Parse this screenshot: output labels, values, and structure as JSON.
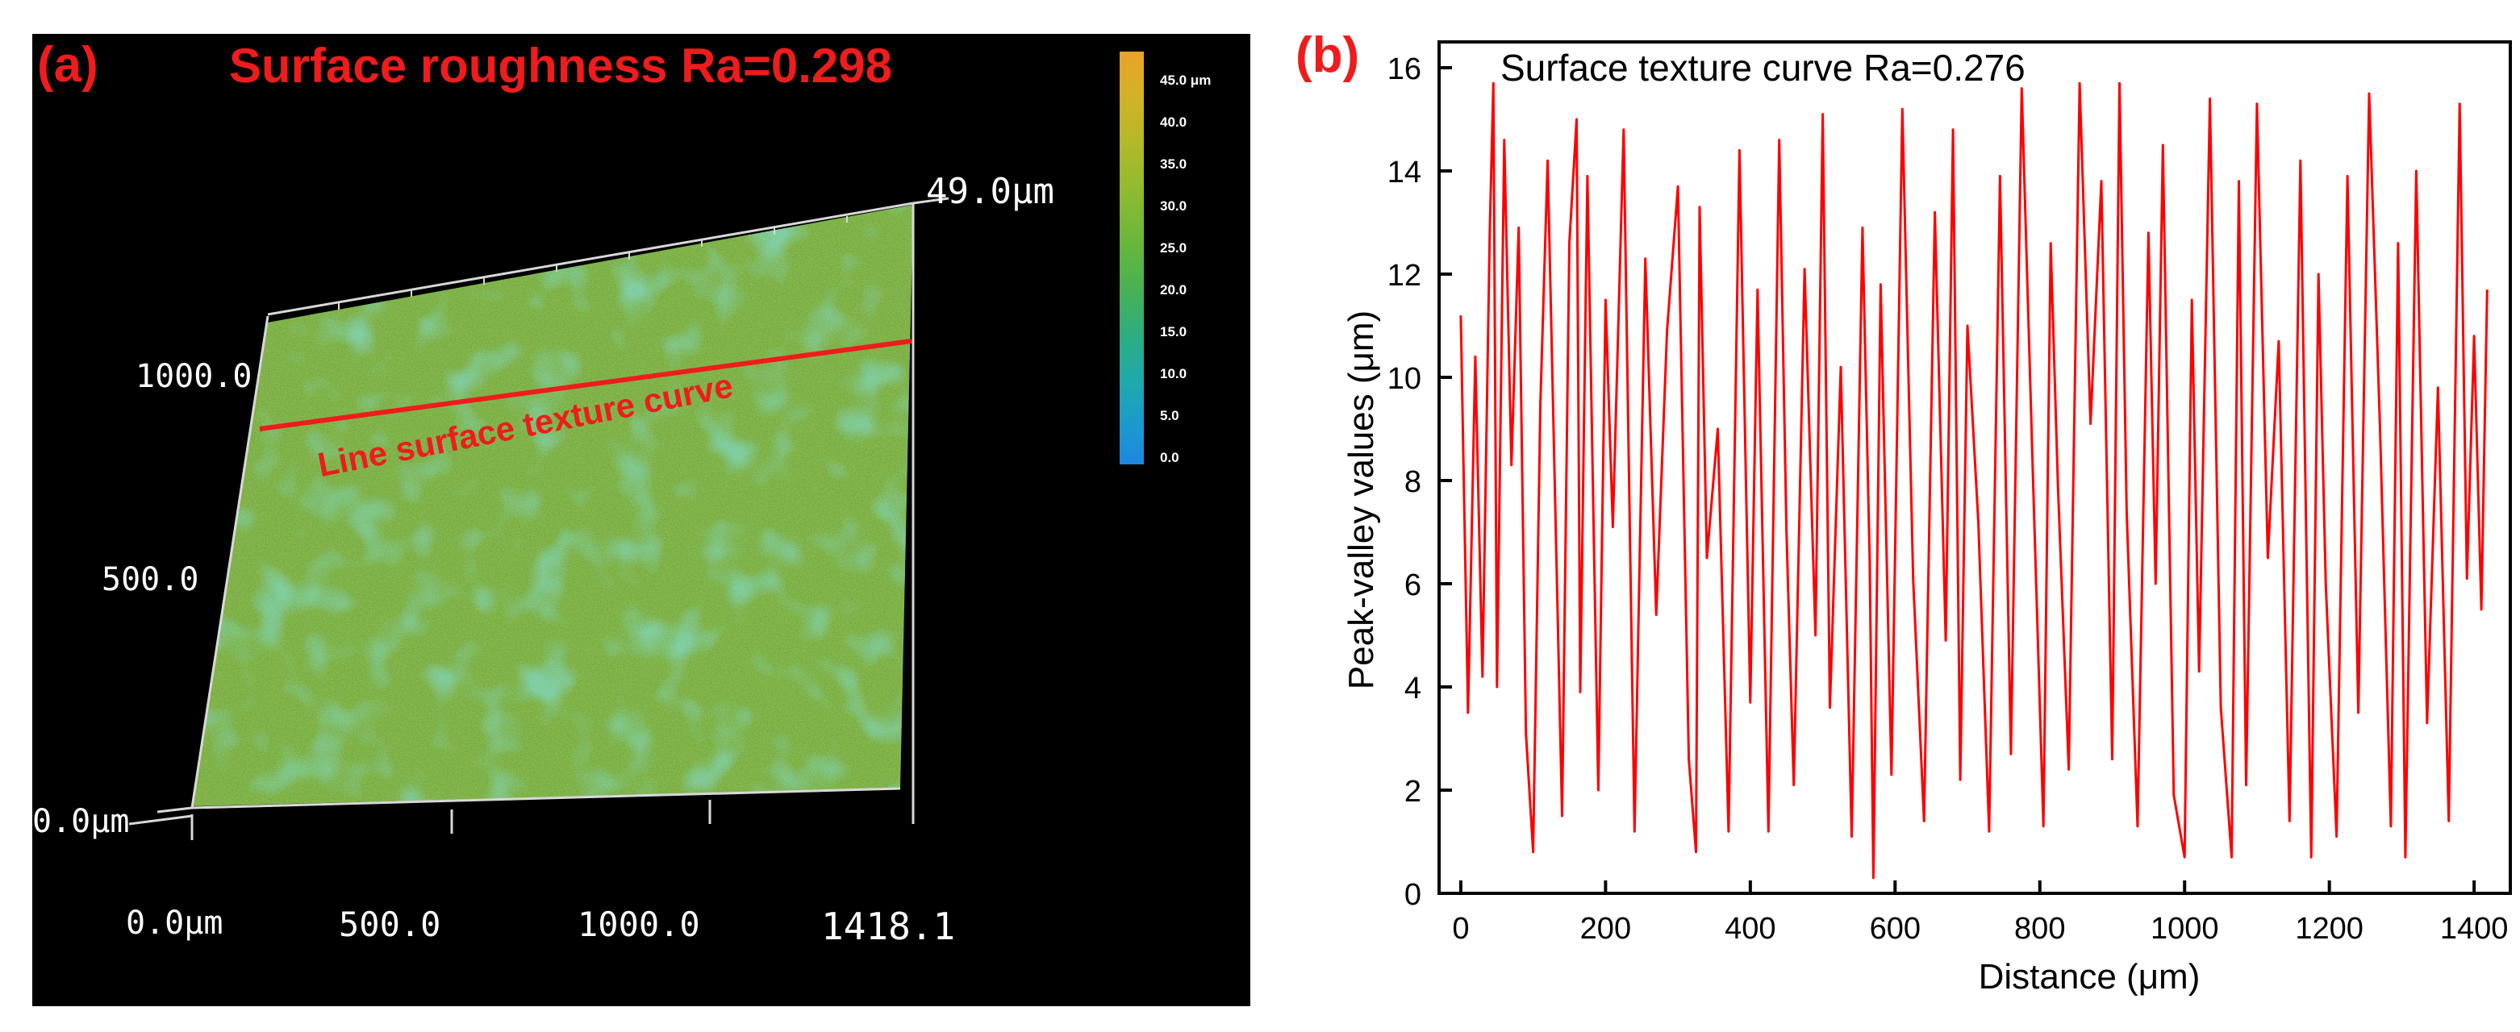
{
  "panel_a": {
    "label": "(a)",
    "title": "Surface roughness Ra=0.298",
    "colorbar": {
      "ticks": [
        "45.0 μm",
        "40.0",
        "35.0",
        "30.0",
        "25.0",
        "20.0",
        "15.0",
        "10.0",
        "5.0",
        "0.0"
      ]
    },
    "z_max_label": "49.0μm",
    "y_labels": [
      "1000.0",
      "500.0",
      "0.0μm"
    ],
    "x_labels": [
      "0.0μm",
      "500.0",
      "1000.0",
      "1418.1"
    ],
    "curve_label": "Line surface texture curve",
    "colors": {
      "annotation": "#ee1c1c",
      "surface": "#6aa63a"
    }
  },
  "panel_b": {
    "label": "(b)",
    "chart_data": {
      "type": "line",
      "title": "Surface texture curve Ra=0.276",
      "xlabel": "Distance (μm)",
      "ylabel": "Peak-valley values (μm)",
      "xlim": [
        -30,
        1450
      ],
      "ylim": [
        0,
        16.5
      ],
      "xticks": [
        0,
        200,
        400,
        600,
        800,
        1000,
        1200,
        1400
      ],
      "yticks": [
        0,
        2,
        4,
        6,
        8,
        10,
        12,
        14,
        16
      ],
      "series": [
        {
          "name": "Surface texture curve",
          "color": "#ff0000",
          "x": [
            0,
            10,
            20,
            30,
            40,
            45,
            50,
            60,
            70,
            80,
            90,
            100,
            110,
            120,
            140,
            150,
            160,
            165,
            175,
            190,
            200,
            210,
            225,
            240,
            255,
            270,
            285,
            300,
            315,
            325,
            330,
            340,
            355,
            370,
            385,
            400,
            410,
            425,
            440,
            450,
            460,
            475,
            490,
            500,
            510,
            525,
            540,
            555,
            565,
            570,
            580,
            595,
            610,
            625,
            640,
            655,
            670,
            680,
            690,
            700,
            715,
            730,
            745,
            760,
            775,
            790,
            805,
            815,
            825,
            840,
            855,
            870,
            885,
            900,
            910,
            920,
            935,
            950,
            960,
            970,
            985,
            1000,
            1010,
            1020,
            1035,
            1050,
            1065,
            1075,
            1085,
            1100,
            1115,
            1130,
            1145,
            1160,
            1175,
            1185,
            1195,
            1210,
            1225,
            1240,
            1255,
            1270,
            1285,
            1295,
            1305,
            1320,
            1335,
            1350,
            1365,
            1380,
            1390,
            1400,
            1410,
            1418
          ],
          "y": [
            11.2,
            3.5,
            10.4,
            4.2,
            12.8,
            15.7,
            4.0,
            14.6,
            8.3,
            12.9,
            3.1,
            0.8,
            9.5,
            14.2,
            1.5,
            12.6,
            15.0,
            3.9,
            13.9,
            2.0,
            11.5,
            7.1,
            14.8,
            1.2,
            12.3,
            5.4,
            10.9,
            13.7,
            2.6,
            0.8,
            13.3,
            6.5,
            9.0,
            1.2,
            14.4,
            3.7,
            11.7,
            1.2,
            14.6,
            7.0,
            2.1,
            12.1,
            5.0,
            15.1,
            3.6,
            10.2,
            1.1,
            12.9,
            6.4,
            0.3,
            11.8,
            2.3,
            15.2,
            6.1,
            1.4,
            13.2,
            4.9,
            14.8,
            2.2,
            11.0,
            7.2,
            1.2,
            13.9,
            2.7,
            15.6,
            8.3,
            1.3,
            12.6,
            7.9,
            2.4,
            15.7,
            9.1,
            13.8,
            2.6,
            15.7,
            7.4,
            1.3,
            12.8,
            6.0,
            14.5,
            1.9,
            0.7,
            11.5,
            4.3,
            15.4,
            3.6,
            0.7,
            13.8,
            2.1,
            15.3,
            6.5,
            10.7,
            1.4,
            14.2,
            0.7,
            12.0,
            6.0,
            1.1,
            13.9,
            3.5,
            15.5,
            9.0,
            1.3,
            12.6,
            0.7,
            14.0,
            3.3,
            9.8,
            1.4,
            15.3,
            6.1,
            10.8,
            5.5,
            11.7
          ]
        }
      ]
    }
  }
}
